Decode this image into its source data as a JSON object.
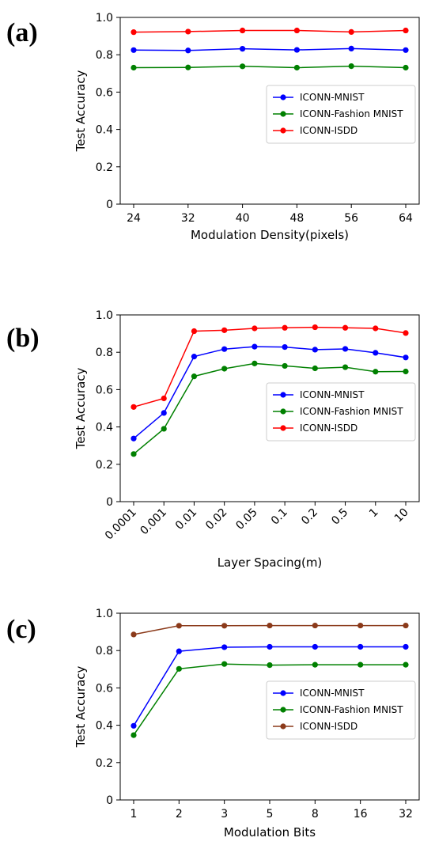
{
  "chart_data": [
    {
      "type": "line",
      "panel_label": "(a)",
      "xlabel": "Modulation Density(pixels)",
      "ylabel": "Test Accuracy",
      "categories": [
        "24",
        "32",
        "40",
        "48",
        "56",
        "64"
      ],
      "ylim": [
        0,
        1.0
      ],
      "yticks": [
        "0",
        "0.2",
        "0.4",
        "0.6",
        "0.8",
        "1.0"
      ],
      "legend_position": "center-right",
      "series": [
        {
          "name": "ICONN-MNIST",
          "color": "#0000ff",
          "values": [
            0.825,
            0.823,
            0.832,
            0.826,
            0.833,
            0.825
          ]
        },
        {
          "name": "ICONN-Fashion MNIST",
          "color": "#008000",
          "values": [
            0.731,
            0.732,
            0.738,
            0.731,
            0.739,
            0.731
          ]
        },
        {
          "name": "ICONN-ISDD",
          "color": "#ff0000",
          "values": [
            0.921,
            0.924,
            0.93,
            0.93,
            0.922,
            0.93
          ]
        }
      ]
    },
    {
      "type": "line",
      "panel_label": "(b)",
      "xlabel": "Layer Spacing(m)",
      "ylabel": "Test Accuracy",
      "categories": [
        "0.0001",
        "0.001",
        "0.01",
        "0.02",
        "0.05",
        "0.1",
        "0.2",
        "0.5",
        "1",
        "10"
      ],
      "ylim": [
        0,
        1.0
      ],
      "yticks": [
        "0",
        "0.2",
        "0.4",
        "0.6",
        "0.8",
        "1.0"
      ],
      "xtick_rotation": 45,
      "legend_position": "center-right",
      "series": [
        {
          "name": "ICONN-MNIST",
          "color": "#0000ff",
          "values": [
            0.338,
            0.475,
            0.777,
            0.817,
            0.83,
            0.828,
            0.814,
            0.818,
            0.797,
            0.772
          ]
        },
        {
          "name": "ICONN-Fashion MNIST",
          "color": "#008000",
          "values": [
            0.255,
            0.39,
            0.671,
            0.712,
            0.74,
            0.727,
            0.714,
            0.72,
            0.696,
            0.697
          ]
        },
        {
          "name": "ICONN-ISDD",
          "color": "#ff0000",
          "values": [
            0.507,
            0.553,
            0.913,
            0.918,
            0.928,
            0.931,
            0.934,
            0.931,
            0.928,
            0.903
          ]
        }
      ]
    },
    {
      "type": "line",
      "panel_label": "(c)",
      "xlabel": "Modulation Bits",
      "ylabel": "Test Accuracy",
      "categories": [
        "1",
        "2",
        "3",
        "5",
        "8",
        "16",
        "32"
      ],
      "ylim": [
        0,
        1.0
      ],
      "yticks": [
        "0",
        "0.2",
        "0.4",
        "0.6",
        "0.8",
        "1.0"
      ],
      "legend_position": "center-right",
      "series": [
        {
          "name": "ICONN-MNIST",
          "color": "#0000ff",
          "values": [
            0.397,
            0.796,
            0.818,
            0.82,
            0.82,
            0.82,
            0.82
          ]
        },
        {
          "name": "ICONN-Fashion MNIST",
          "color": "#008000",
          "values": [
            0.347,
            0.702,
            0.728,
            0.722,
            0.724,
            0.724,
            0.724
          ]
        },
        {
          "name": "ICONN-ISDD",
          "color": "#8b3a1a",
          "values": [
            0.886,
            0.933,
            0.933,
            0.934,
            0.934,
            0.934,
            0.934
          ]
        }
      ]
    }
  ]
}
